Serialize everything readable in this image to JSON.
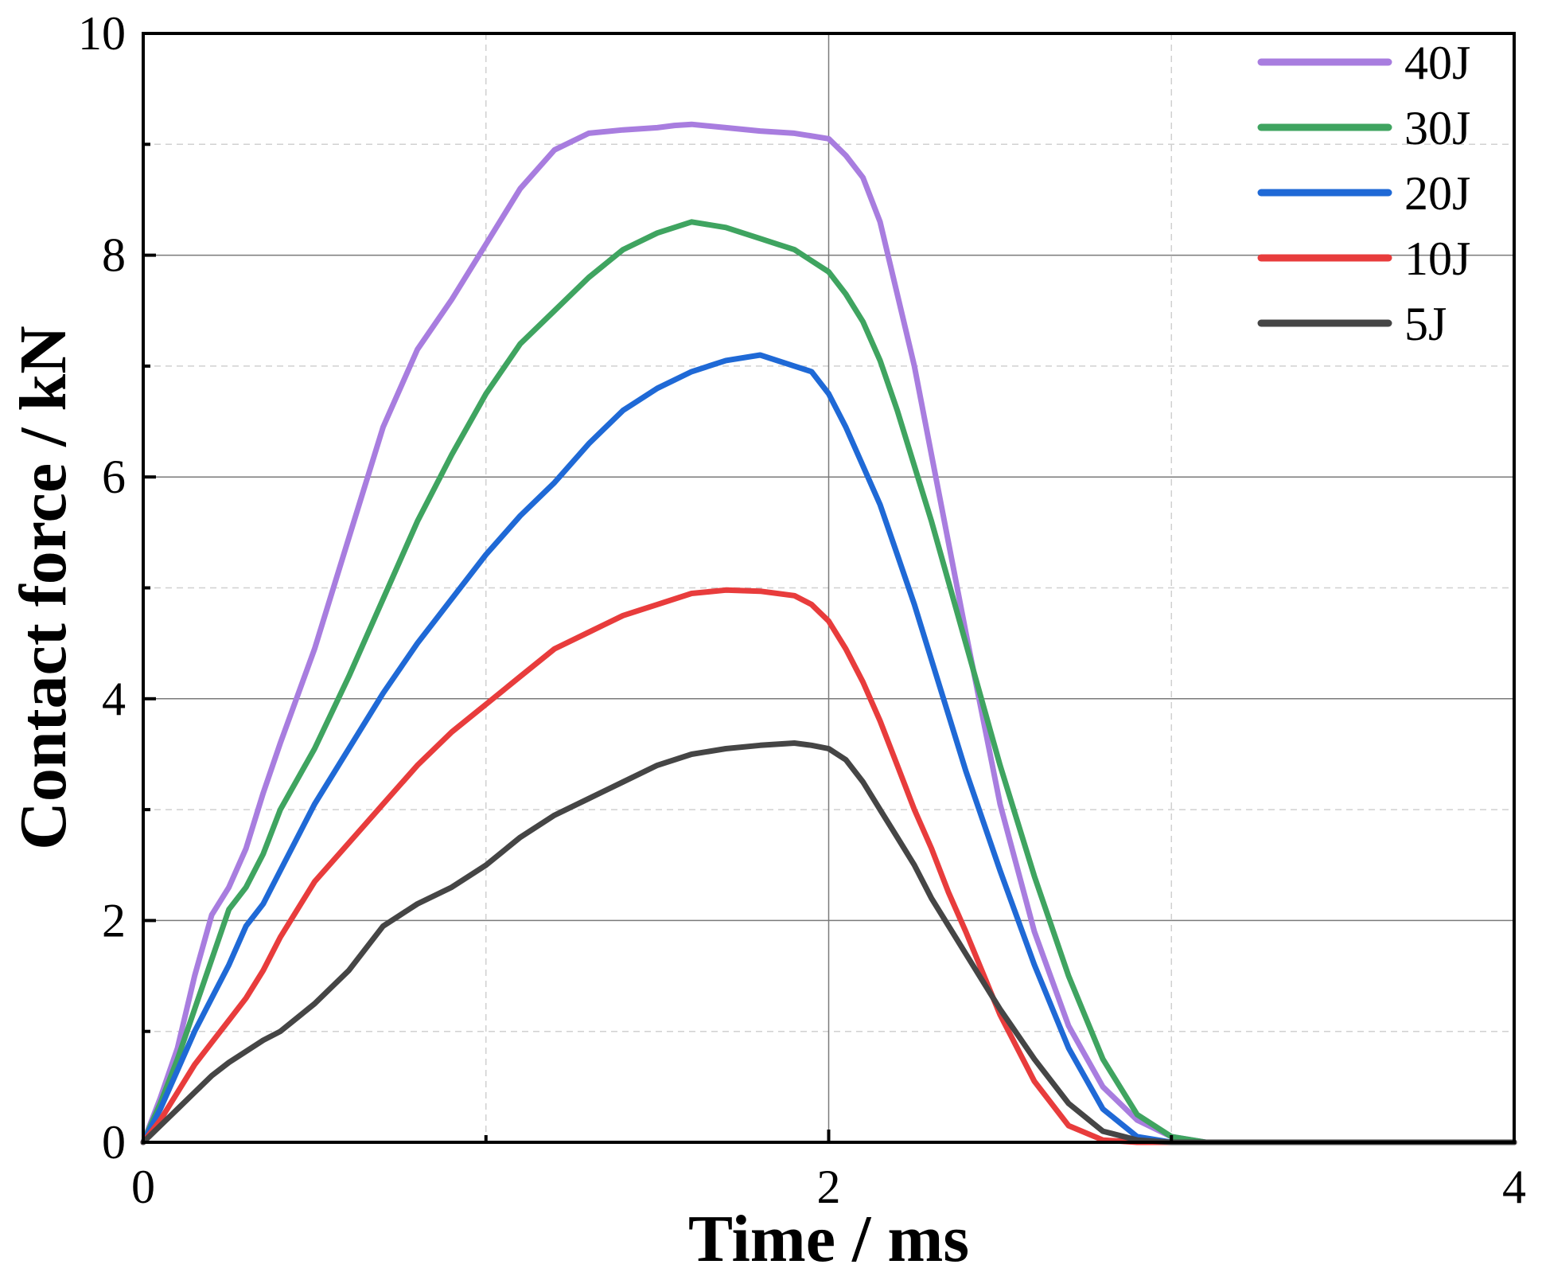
{
  "chart_data": {
    "type": "line",
    "title": "",
    "xlabel": "Time / ms",
    "ylabel": "Contact force / kN",
    "xlim": [
      0,
      4
    ],
    "ylim": [
      0,
      10
    ],
    "xticks": [
      0,
      2,
      4
    ],
    "xtick_labels": [
      "0",
      "2",
      "4"
    ],
    "yticks": [
      0,
      2,
      4,
      6,
      8,
      10
    ],
    "ytick_labels": [
      "0",
      "2",
      "4",
      "6",
      "8",
      "10"
    ],
    "grid": true,
    "legend_position": "top-right",
    "series": [
      {
        "name": "40J",
        "color": "#a87ddf",
        "x": [
          0,
          0.05,
          0.1,
          0.15,
          0.2,
          0.25,
          0.3,
          0.35,
          0.4,
          0.5,
          0.6,
          0.7,
          0.8,
          0.9,
          1.0,
          1.1,
          1.2,
          1.3,
          1.4,
          1.5,
          1.55,
          1.6,
          1.7,
          1.8,
          1.9,
          2.0,
          2.05,
          2.1,
          2.15,
          2.25,
          2.3,
          2.35,
          2.4,
          2.5,
          2.6,
          2.7,
          2.8,
          2.9,
          3.0,
          3.1,
          3.2,
          3.25,
          3.3,
          3.4,
          4.0
        ],
        "y": [
          0,
          0.4,
          0.85,
          1.5,
          2.05,
          2.3,
          2.65,
          3.15,
          3.6,
          4.45,
          5.45,
          6.45,
          7.15,
          7.6,
          8.1,
          8.6,
          8.95,
          9.1,
          9.13,
          9.15,
          9.17,
          9.18,
          9.15,
          9.12,
          9.1,
          9.05,
          8.9,
          8.7,
          8.3,
          7.0,
          6.2,
          5.4,
          4.6,
          3.05,
          1.9,
          1.05,
          0.5,
          0.2,
          0.05,
          0.0,
          0.0,
          0.0,
          0.0,
          0.0,
          0.0
        ]
      },
      {
        "name": "30J",
        "color": "#3fa460",
        "x": [
          0,
          0.05,
          0.1,
          0.15,
          0.2,
          0.25,
          0.3,
          0.35,
          0.4,
          0.5,
          0.6,
          0.7,
          0.8,
          0.9,
          1.0,
          1.1,
          1.2,
          1.3,
          1.4,
          1.5,
          1.6,
          1.7,
          1.8,
          1.85,
          1.9,
          2.0,
          2.05,
          2.1,
          2.15,
          2.2,
          2.25,
          2.3,
          2.35,
          2.4,
          2.5,
          2.6,
          2.7,
          2.8,
          2.9,
          3.0,
          3.1,
          3.2,
          3.3,
          3.4,
          4.0
        ],
        "y": [
          0,
          0.35,
          0.75,
          1.2,
          1.65,
          2.1,
          2.3,
          2.6,
          3.0,
          3.55,
          4.2,
          4.9,
          5.6,
          6.2,
          6.75,
          7.2,
          7.5,
          7.8,
          8.05,
          8.2,
          8.3,
          8.25,
          8.15,
          8.1,
          8.05,
          7.85,
          7.65,
          7.4,
          7.05,
          6.6,
          6.1,
          5.6,
          5.05,
          4.5,
          3.4,
          2.4,
          1.5,
          0.75,
          0.25,
          0.05,
          0.0,
          0.0,
          0.0,
          0.0,
          0.0
        ]
      },
      {
        "name": "20J",
        "color": "#1f69d6",
        "x": [
          0,
          0.05,
          0.1,
          0.15,
          0.2,
          0.25,
          0.3,
          0.35,
          0.4,
          0.5,
          0.6,
          0.7,
          0.8,
          0.9,
          1.0,
          1.1,
          1.2,
          1.3,
          1.4,
          1.5,
          1.6,
          1.7,
          1.8,
          1.9,
          1.95,
          2.0,
          2.05,
          2.1,
          2.15,
          2.2,
          2.25,
          2.3,
          2.35,
          2.4,
          2.5,
          2.6,
          2.7,
          2.8,
          2.9,
          3.0,
          3.1,
          3.2,
          3.3,
          4.0
        ],
        "y": [
          0,
          0.3,
          0.65,
          1.0,
          1.3,
          1.6,
          1.95,
          2.15,
          2.45,
          3.05,
          3.55,
          4.05,
          4.5,
          4.9,
          5.3,
          5.65,
          5.95,
          6.3,
          6.6,
          6.8,
          6.95,
          7.05,
          7.1,
          7.0,
          6.95,
          6.75,
          6.45,
          6.1,
          5.75,
          5.3,
          4.85,
          4.35,
          3.85,
          3.35,
          2.45,
          1.6,
          0.85,
          0.3,
          0.05,
          0.0,
          0.0,
          0.0,
          0.0,
          0.0
        ]
      },
      {
        "name": "10J",
        "color": "#e83c3c",
        "x": [
          0,
          0.05,
          0.1,
          0.15,
          0.2,
          0.25,
          0.3,
          0.35,
          0.4,
          0.5,
          0.6,
          0.7,
          0.8,
          0.9,
          1.0,
          1.1,
          1.2,
          1.3,
          1.4,
          1.5,
          1.6,
          1.7,
          1.8,
          1.9,
          1.95,
          2.0,
          2.05,
          2.1,
          2.15,
          2.2,
          2.25,
          2.3,
          2.35,
          2.4,
          2.5,
          2.6,
          2.7,
          2.8,
          2.9,
          3.0,
          3.1,
          3.2,
          3.3,
          4.0
        ],
        "y": [
          0,
          0.2,
          0.45,
          0.7,
          0.9,
          1.1,
          1.3,
          1.55,
          1.85,
          2.35,
          2.7,
          3.05,
          3.4,
          3.7,
          3.95,
          4.2,
          4.45,
          4.6,
          4.75,
          4.85,
          4.95,
          4.98,
          4.97,
          4.93,
          4.85,
          4.7,
          4.45,
          4.15,
          3.8,
          3.4,
          3.0,
          2.65,
          2.25,
          1.9,
          1.15,
          0.55,
          0.15,
          0.02,
          0.0,
          0.0,
          0.0,
          0.0,
          0.0,
          0.0
        ]
      },
      {
        "name": "5J",
        "color": "#454545",
        "x": [
          0,
          0.05,
          0.1,
          0.15,
          0.2,
          0.25,
          0.3,
          0.35,
          0.4,
          0.5,
          0.6,
          0.7,
          0.8,
          0.9,
          1.0,
          1.1,
          1.2,
          1.3,
          1.4,
          1.5,
          1.6,
          1.7,
          1.8,
          1.9,
          1.95,
          2.0,
          2.05,
          2.1,
          2.15,
          2.2,
          2.25,
          2.3,
          2.35,
          2.4,
          2.5,
          2.6,
          2.7,
          2.8,
          2.9,
          3.0,
          3.1,
          3.2,
          3.3,
          4.0
        ],
        "y": [
          0,
          0.15,
          0.3,
          0.45,
          0.6,
          0.72,
          0.82,
          0.92,
          1.0,
          1.25,
          1.55,
          1.95,
          2.15,
          2.3,
          2.5,
          2.75,
          2.95,
          3.1,
          3.25,
          3.4,
          3.5,
          3.55,
          3.58,
          3.6,
          3.58,
          3.55,
          3.45,
          3.25,
          3.0,
          2.75,
          2.5,
          2.2,
          1.95,
          1.7,
          1.2,
          0.75,
          0.35,
          0.1,
          0.02,
          0.0,
          0.0,
          0.0,
          0.0,
          0.0
        ]
      }
    ]
  }
}
